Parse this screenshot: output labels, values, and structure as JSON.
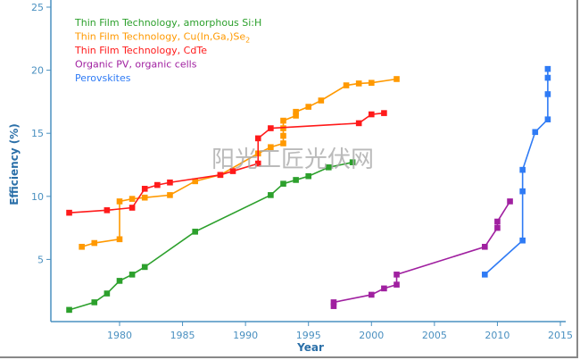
{
  "chart_data": {
    "type": "line",
    "title": "",
    "xlabel": "Year",
    "ylabel": "Efficiency (%)",
    "xlim": [
      1974.6,
      2015.5
    ],
    "ylim": [
      0,
      25
    ],
    "xticks": [
      1980,
      1985,
      1990,
      1995,
      2000,
      2005,
      2010,
      2015
    ],
    "yticks": [
      5,
      10,
      15,
      20,
      25
    ],
    "grid": false,
    "legend_position": "top-left",
    "series": [
      {
        "name": "Thin Film Technology, amorphous Si:H",
        "color": "#2ca02c",
        "points": [
          [
            1976,
            1.0
          ],
          [
            1978,
            1.6
          ],
          [
            1979,
            2.3
          ],
          [
            1980,
            3.3
          ],
          [
            1981,
            3.8
          ],
          [
            1982,
            4.4
          ],
          [
            1986,
            7.2
          ],
          [
            1992,
            10.1
          ],
          [
            1993,
            11.0
          ],
          [
            1994,
            11.3
          ],
          [
            1995,
            11.6
          ],
          [
            1996.6,
            12.3
          ],
          [
            1998.5,
            12.7
          ]
        ]
      },
      {
        "name": "Thin Film Technology, Cu(In,Ga,)Se",
        "name_subscript": "2",
        "color": "#ff9900",
        "points": [
          [
            1977,
            6.0
          ],
          [
            1978,
            6.3
          ],
          [
            1980,
            6.6
          ],
          [
            1980,
            9.6
          ],
          [
            1981,
            9.8
          ],
          [
            1982,
            9.9
          ],
          [
            1984,
            10.1
          ],
          [
            1986,
            11.2
          ],
          [
            1988,
            11.7
          ],
          [
            1991,
            13.4
          ],
          [
            1992,
            13.9
          ],
          [
            1993,
            14.2
          ],
          [
            1993,
            14.8
          ],
          [
            1993,
            15.4
          ],
          [
            1993,
            16.0
          ],
          [
            1994,
            16.4
          ],
          [
            1994,
            16.7
          ],
          [
            1995,
            17.1
          ],
          [
            1996,
            17.6
          ],
          [
            1998,
            18.8
          ],
          [
            1999,
            18.95
          ],
          [
            2000,
            19.0
          ],
          [
            2002,
            19.3
          ]
        ]
      },
      {
        "name": "Thin Film Technology, CdTe",
        "color": "#ff1a1a",
        "points": [
          [
            1976,
            8.7
          ],
          [
            1979,
            8.9
          ],
          [
            1981,
            9.1
          ],
          [
            1982,
            10.6
          ],
          [
            1983,
            10.9
          ],
          [
            1984,
            11.1
          ],
          [
            1988,
            11.7
          ],
          [
            1989,
            12.0
          ],
          [
            1991,
            12.6
          ],
          [
            1991,
            14.6
          ],
          [
            1992,
            15.4
          ],
          [
            1999,
            15.8
          ],
          [
            2000,
            16.5
          ],
          [
            2001,
            16.6
          ]
        ]
      },
      {
        "name": "Organic PV, organic cells",
        "color": "#a020a0",
        "points": [
          [
            1997,
            1.3
          ],
          [
            1997,
            1.6
          ],
          [
            2000,
            2.2
          ],
          [
            2001,
            2.7
          ],
          [
            2002,
            3.0
          ],
          [
            2002,
            3.8
          ],
          [
            2009,
            6.0
          ],
          [
            2010,
            7.5
          ],
          [
            2010,
            8.0
          ],
          [
            2011,
            9.6
          ]
        ]
      },
      {
        "name": "Perovskites",
        "color": "#2f7bf5",
        "points": [
          [
            2009,
            3.8
          ],
          [
            2012,
            6.5
          ],
          [
            2012,
            10.4
          ],
          [
            2012,
            12.1
          ],
          [
            2013,
            15.1
          ],
          [
            2014,
            16.1
          ],
          [
            2014,
            18.1
          ],
          [
            2014,
            19.4
          ],
          [
            2014,
            20.1
          ]
        ]
      }
    ]
  },
  "watermark": "阳光工匠光伏网"
}
